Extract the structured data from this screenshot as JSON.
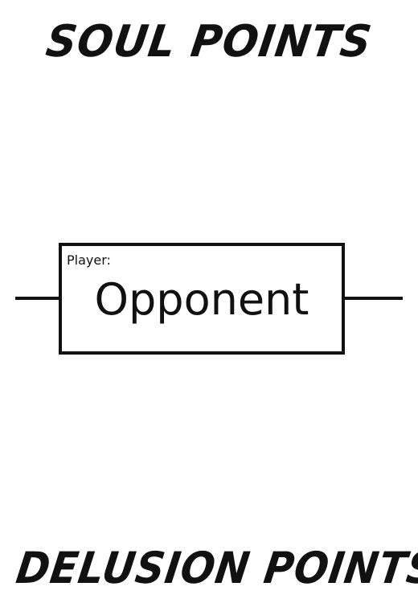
{
  "top_title": "SOUL POINTS",
  "bottom_title": "DELUSION POINTS",
  "player_box": {
    "label": "Player:",
    "name": "Opponent"
  },
  "colors": {
    "ink": "#111111",
    "background": "#ffffff"
  }
}
